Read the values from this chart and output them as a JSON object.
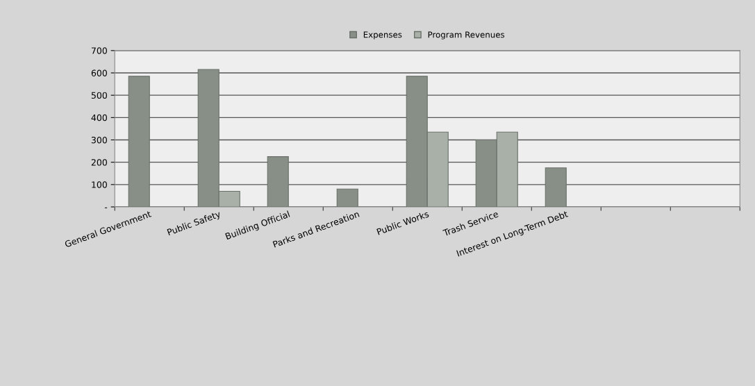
{
  "chart_data": {
    "type": "bar",
    "categories": [
      "General Government",
      "Public Safety",
      "Building Official",
      "Parks and Recreation",
      "Public Works",
      "Trash Service",
      "Interest on Long-Term Debt",
      null,
      null
    ],
    "series": [
      {
        "name": "Expenses",
        "color": "#878f87",
        "values": [
          585,
          615,
          225,
          80,
          585,
          300,
          175,
          null,
          null
        ]
      },
      {
        "name": "Program Revenues",
        "color": "#a9b0a8",
        "values": [
          null,
          70,
          null,
          null,
          335,
          335,
          null,
          null,
          null
        ]
      }
    ],
    "ylim": [
      0,
      700
    ],
    "yticks": [
      {
        "value": 0,
        "label": "-"
      },
      100,
      200,
      300,
      400,
      500,
      600,
      700
    ],
    "grid": "y",
    "legend": "top"
  }
}
